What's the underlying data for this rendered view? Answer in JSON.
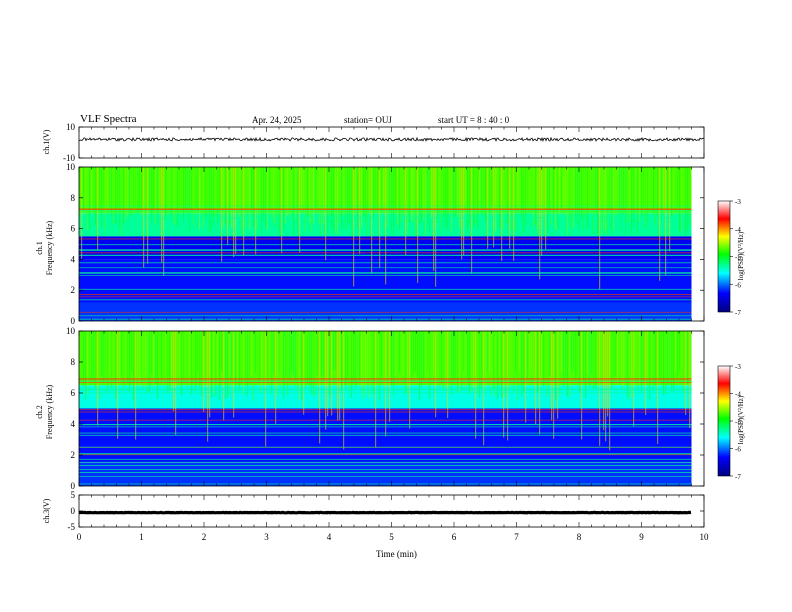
{
  "header": {
    "title": "VLF Spectra",
    "date": "Apr. 24, 2025",
    "station": "station= OUJ",
    "start_ut": "start  UT  =   8  : 40 : 0"
  },
  "colors": {
    "spectrogram_map": [
      "#000080",
      "#0000ff",
      "#00ffff",
      "#00ff00",
      "#ffff00",
      "#ff0000",
      "#800000"
    ],
    "waveform": "#000000"
  },
  "chart_data": [
    {
      "type": "line",
      "panel": "ch1-waveform",
      "ylabel": "ch.1(V)",
      "ylim": [
        -10,
        10
      ],
      "yticks": [
        "10",
        "-10"
      ],
      "xlim": [
        0,
        10
      ],
      "series": [
        {
          "x": [
            0,
            10
          ],
          "values": [
            2,
            2
          ]
        }
      ]
    },
    {
      "type": "heatmap",
      "panel": "ch1-spectrogram",
      "ylabel": "ch.1\nFrequency (kHz)",
      "ylim": [
        0,
        10
      ],
      "yticks": [
        "0",
        "2",
        "4",
        "6",
        "8",
        "10"
      ],
      "xlim": [
        0,
        10
      ],
      "data_end_min": 9.8,
      "colorbar": {
        "label": "log(PSD)(V²/Hz)",
        "range": [
          -7,
          -3
        ],
        "ticks": [
          "-3",
          "-4",
          "-5",
          "-6",
          "-7"
        ]
      },
      "level_bands": [
        {
          "fmin": 0,
          "fmax": 1.2,
          "level": -6.2
        },
        {
          "fmin": 1.2,
          "fmax": 4,
          "level": -6.3
        },
        {
          "fmin": 4,
          "fmax": 5.5,
          "level": -6.4
        },
        {
          "fmin": 5.5,
          "fmax": 7,
          "level": -5.4
        },
        {
          "fmin": 7,
          "fmax": 10,
          "level": -4.8
        }
      ]
    },
    {
      "type": "heatmap",
      "panel": "ch2-spectrogram",
      "ylabel": "ch.2\nFrequency (kHz)",
      "ylim": [
        0,
        10
      ],
      "yticks": [
        "0",
        "2",
        "4",
        "6",
        "8",
        "10"
      ],
      "xlim": [
        0,
        10
      ],
      "data_end_min": 9.8,
      "colorbar": {
        "label": "log(PSD)(V²/Hz)",
        "range": [
          -7,
          -3
        ],
        "ticks": [
          "-3",
          "-4",
          "-5",
          "-6",
          "-7"
        ]
      },
      "level_bands": [
        {
          "fmin": 0,
          "fmax": 1.5,
          "level": -6.2
        },
        {
          "fmin": 1.5,
          "fmax": 5,
          "level": -6.3
        },
        {
          "fmin": 5,
          "fmax": 6.5,
          "level": -5.6
        },
        {
          "fmin": 6.5,
          "fmax": 10,
          "level": -4.8
        }
      ]
    },
    {
      "type": "line",
      "panel": "ch3-waveform",
      "ylabel": "ch.3(V)",
      "ylim": [
        -5,
        5
      ],
      "yticks": [
        "5",
        "0",
        "-5"
      ],
      "xlim": [
        0,
        10
      ],
      "xlabel": "Time  (min)",
      "xticks": [
        "0",
        "1",
        "2",
        "3",
        "4",
        "5",
        "6",
        "7",
        "8",
        "9",
        "10"
      ],
      "series": [
        {
          "x": [
            0,
            9.8
          ],
          "values": [
            -0.5,
            -0.5
          ]
        }
      ]
    }
  ]
}
